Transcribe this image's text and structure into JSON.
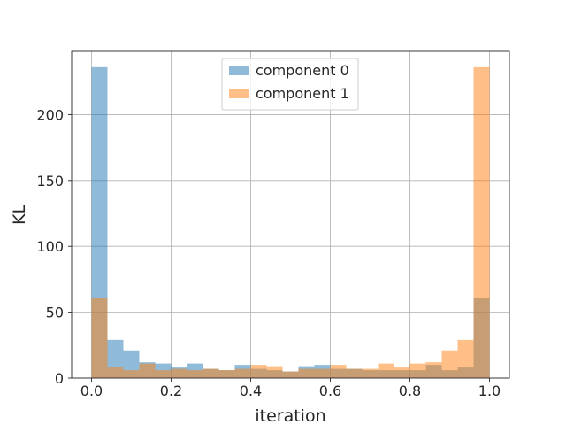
{
  "chart_data": {
    "type": "bar",
    "xlabel": "iteration",
    "ylabel": "KL",
    "xlim": [
      -0.05,
      1.05
    ],
    "ylim": [
      0,
      248
    ],
    "x_ticks": [
      {
        "value": 0.0,
        "label": "0.0"
      },
      {
        "value": 0.2,
        "label": "0.2"
      },
      {
        "value": 0.4,
        "label": "0.4"
      },
      {
        "value": 0.6,
        "label": "0.6"
      },
      {
        "value": 0.8,
        "label": "0.8"
      },
      {
        "value": 1.0,
        "label": "1.0"
      }
    ],
    "y_ticks": [
      {
        "value": 0,
        "label": "0"
      },
      {
        "value": 50,
        "label": "50"
      },
      {
        "value": 100,
        "label": "100"
      },
      {
        "value": 150,
        "label": "150"
      },
      {
        "value": 200,
        "label": "200"
      }
    ],
    "grid": true,
    "legend_position": "top-center",
    "bin_edges": [
      0.0,
      0.04,
      0.08,
      0.12,
      0.16,
      0.2,
      0.24,
      0.28,
      0.32,
      0.36,
      0.4,
      0.44,
      0.48,
      0.52,
      0.56,
      0.6,
      0.64,
      0.68,
      0.72,
      0.76,
      0.8,
      0.84,
      0.88,
      0.92,
      0.96,
      1.0
    ],
    "series": [
      {
        "name": "component 0",
        "color": "#1f77b4",
        "alpha": 0.5,
        "values": [
          236,
          29,
          21,
          12,
          11,
          8,
          11,
          7,
          6,
          10,
          7,
          6,
          5,
          9,
          10,
          7,
          7,
          6,
          6,
          6,
          6,
          10,
          6,
          8,
          61
        ]
      },
      {
        "name": "component 1",
        "color": "#ff7f0e",
        "alpha": 0.5,
        "values": [
          61,
          8,
          6,
          11,
          6,
          7,
          6,
          7,
          6,
          7,
          10,
          9,
          5,
          7,
          7,
          10,
          7,
          7,
          11,
          8,
          11,
          12,
          21,
          29,
          236
        ]
      }
    ]
  }
}
